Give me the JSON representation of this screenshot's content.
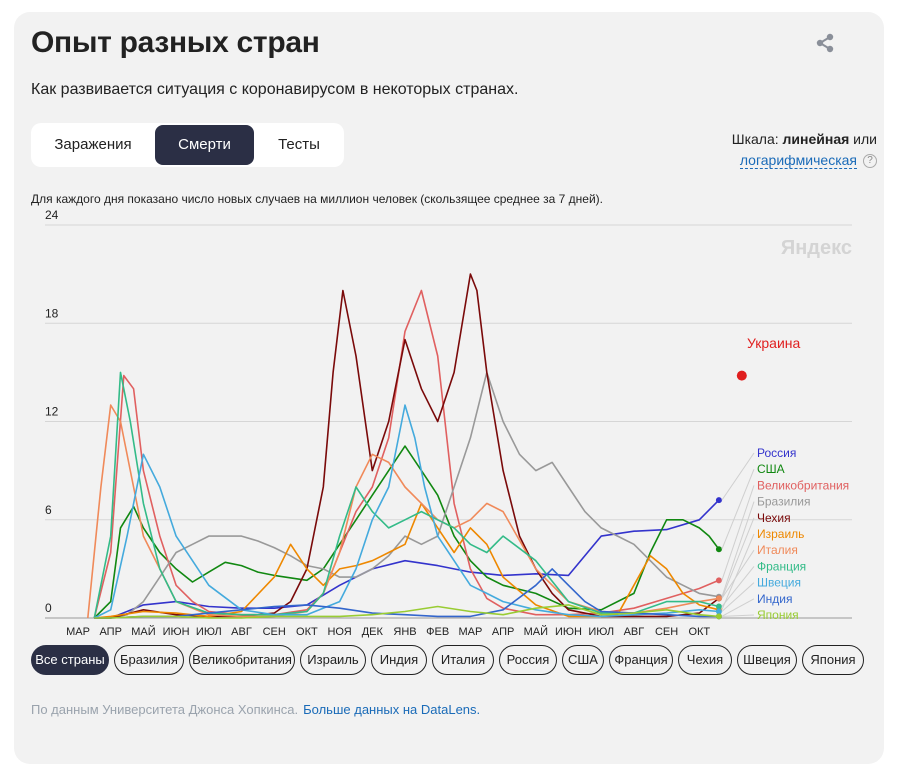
{
  "header": {
    "title": "Опыт разных стран",
    "subtitle": "Как развивается ситуация с коронавирусом в некоторых странах."
  },
  "tabs": [
    {
      "label": "Заражения",
      "active": false
    },
    {
      "label": "Смерти",
      "active": true
    },
    {
      "label": "Тесты",
      "active": false
    }
  ],
  "scale": {
    "prefix": "Шкала: ",
    "current": "линейная",
    "or": " или",
    "alternative": "логарифмическая",
    "help": "?"
  },
  "note": "Для каждого дня показано число новых случаев на миллион человек (скользящее среднее за 7 дней).",
  "watermark": "Яндекс",
  "filters": [
    "Все страны",
    "Бразилия",
    "Великобритания",
    "Израиль",
    "Индия",
    "Италия",
    "Россия",
    "США",
    "Франция",
    "Чехия",
    "Швеция",
    "Япония"
  ],
  "footer": {
    "source": "По данным Университета Джонса Хопкинса.",
    "link": "Больше данных на DataLens."
  },
  "colors": {
    "active_tab": "#2b2f45",
    "link": "#1a6bb8"
  },
  "chart_data": {
    "type": "line",
    "ylim": [
      0,
      24
    ],
    "yticks": [
      0,
      6,
      12,
      18,
      24
    ],
    "x_ticks": [
      "МАР",
      "АПР",
      "МАЙ",
      "ИЮН",
      "ИЮЛ",
      "АВГ",
      "СЕН",
      "ОКТ",
      "НОЯ",
      "ДЕК",
      "ЯНВ",
      "ФЕВ",
      "МАР",
      "АПР",
      "МАЙ",
      "ИЮН",
      "ИЮЛ",
      "АВГ",
      "СЕН",
      "ОКТ"
    ],
    "grid": true,
    "legend": "right",
    "highlight": {
      "name": "Украина",
      "x": 20.3,
      "y": 14.8,
      "color": "#e01f1f"
    },
    "series": [
      {
        "name": "Россия",
        "color": "#3333cc",
        "x": [
          0.5,
          1,
          2,
          3,
          4,
          5,
          6,
          7,
          8,
          9,
          10,
          11,
          12,
          13,
          14,
          15,
          16,
          17,
          18,
          19,
          19.6
        ],
        "y": [
          0,
          0,
          0.8,
          1.0,
          0.7,
          0.6,
          0.6,
          0.8,
          2.0,
          3.0,
          3.5,
          3.2,
          2.8,
          2.6,
          2.7,
          2.6,
          5.0,
          5.3,
          5.4,
          6.0,
          7.2
        ]
      },
      {
        "name": "США",
        "color": "#118811",
        "x": [
          0.5,
          1,
          1.3,
          1.7,
          2,
          2.5,
          3,
          3.5,
          4,
          4.5,
          5,
          5.5,
          6,
          7,
          7.5,
          8,
          8.5,
          9,
          9.5,
          10,
          10.5,
          11,
          11.5,
          12,
          12.5,
          13,
          14,
          15,
          16,
          17,
          17.5,
          18,
          18.5,
          19,
          19.3,
          19.6
        ],
        "y": [
          0,
          1,
          5.5,
          6.8,
          5.5,
          4.0,
          3.0,
          2.2,
          2.8,
          3.4,
          3.2,
          2.8,
          2.6,
          2.3,
          3.0,
          4.5,
          6.0,
          7.5,
          9.0,
          10.5,
          9.0,
          7.5,
          5.0,
          3.5,
          2.5,
          2.0,
          1.5,
          0.6,
          0.5,
          1.5,
          4.0,
          6.0,
          6.0,
          5.5,
          5.0,
          4.2
        ]
      },
      {
        "name": "Великобритания",
        "color": "#e06060",
        "x": [
          0.5,
          1,
          1.4,
          1.7,
          2,
          2.5,
          3,
          3.5,
          4,
          5,
          6,
          7,
          7.5,
          8,
          8.5,
          9,
          9.5,
          10,
          10.5,
          11,
          11.5,
          12,
          12.5,
          13,
          14,
          15,
          16,
          17,
          18,
          19,
          19.6
        ],
        "y": [
          0,
          4,
          14.8,
          14.0,
          9.0,
          5.0,
          2.0,
          1.0,
          0.4,
          0.2,
          0.2,
          0.5,
          1.5,
          4.0,
          6.5,
          8.0,
          11.0,
          17.5,
          20.0,
          16.0,
          7.0,
          3.0,
          1.2,
          0.6,
          0.2,
          0.2,
          0.3,
          0.6,
          1.2,
          1.8,
          2.3
        ]
      },
      {
        "name": "Бразилия",
        "color": "#999999",
        "x": [
          0.5,
          1,
          1.5,
          2,
          2.5,
          3,
          3.5,
          4,
          4.5,
          5,
          5.5,
          6,
          6.5,
          7,
          7.5,
          8,
          8.5,
          9,
          9.5,
          10,
          10.5,
          11,
          11.5,
          12,
          12.5,
          13,
          13.5,
          14,
          14.5,
          15,
          15.5,
          16,
          16.5,
          17,
          17.5,
          18,
          18.5,
          19,
          19.6
        ],
        "y": [
          0,
          0,
          0.2,
          1.0,
          2.5,
          4.0,
          4.5,
          5.0,
          5.0,
          5.0,
          4.7,
          4.3,
          3.8,
          3.2,
          3.0,
          2.5,
          2.5,
          3.0,
          3.8,
          5.0,
          4.5,
          5.0,
          8.0,
          11.0,
          15.0,
          12.0,
          10.0,
          9.0,
          9.5,
          8.0,
          6.5,
          5.5,
          5.0,
          4.5,
          3.5,
          2.5,
          2.0,
          1.5,
          1.3
        ]
      },
      {
        "name": "Чехия",
        "color": "#7a0a0a",
        "x": [
          0.5,
          1,
          2,
          3,
          4,
          5,
          6,
          6.5,
          7,
          7.5,
          7.8,
          8.1,
          8.5,
          9,
          9.5,
          10,
          10.5,
          11,
          11.5,
          12,
          12.2,
          12.5,
          13,
          13.5,
          14,
          14.5,
          15,
          16,
          17,
          18,
          19,
          19.6
        ],
        "y": [
          0,
          0,
          0.5,
          0.2,
          0.1,
          0.1,
          0.3,
          1.0,
          3.0,
          8.0,
          15.0,
          20.0,
          16.0,
          9.0,
          12.0,
          17.0,
          14.0,
          12.0,
          15.0,
          21.0,
          20.0,
          15.0,
          9.0,
          5.0,
          3.0,
          1.5,
          0.5,
          0.1,
          0.1,
          0.1,
          0.3,
          1.2
        ]
      },
      {
        "name": "Израиль",
        "color": "#ee8800",
        "x": [
          0.5,
          1,
          2,
          3,
          4,
          5,
          6,
          6.5,
          7,
          7.5,
          8,
          8.5,
          9,
          9.5,
          10,
          10.5,
          11,
          11.5,
          12,
          12.5,
          13,
          14,
          15,
          16,
          16.5,
          17,
          17.5,
          18,
          18.5,
          19,
          19.6
        ],
        "y": [
          0,
          0.1,
          0.4,
          0.3,
          0.1,
          0.4,
          2.5,
          4.5,
          3.0,
          2.0,
          3.0,
          3.2,
          3.5,
          4.0,
          4.5,
          7.0,
          5.5,
          4.0,
          5.5,
          4.5,
          2.5,
          0.8,
          0.1,
          0.1,
          0.2,
          2.0,
          3.8,
          3.0,
          1.5,
          0.8,
          0.5
        ]
      },
      {
        "name": "Италия",
        "color": "#f08a5a",
        "x": [
          0.3,
          0.7,
          1.0,
          1.3,
          1.6,
          2,
          2.5,
          3,
          4,
          5,
          6,
          7,
          7.5,
          8,
          8.5,
          9,
          9.5,
          10,
          10.5,
          11,
          11.5,
          12,
          12.5,
          13,
          14,
          15,
          16,
          17,
          18,
          19,
          19.6
        ],
        "y": [
          0,
          8.0,
          13.0,
          12.0,
          9.0,
          5.0,
          3.0,
          1.0,
          0.2,
          0.1,
          0.1,
          0.4,
          1.5,
          4.0,
          8.0,
          10.0,
          9.5,
          8.0,
          7.0,
          6.0,
          5.5,
          6.0,
          7.0,
          6.5,
          3.0,
          1.0,
          0.4,
          0.3,
          0.6,
          1.0,
          1.2
        ]
      },
      {
        "name": "Франция",
        "color": "#33bb88",
        "x": [
          0.5,
          1,
          1.3,
          1.6,
          2,
          2.5,
          3,
          4,
          5,
          6,
          7,
          7.5,
          8,
          8.5,
          9,
          9.5,
          10,
          10.5,
          11,
          11.5,
          12,
          12.5,
          13,
          14,
          15,
          16,
          17,
          18,
          19,
          19.6
        ],
        "y": [
          0,
          5.0,
          15.0,
          12.0,
          7.0,
          3.0,
          1.0,
          0.3,
          0.2,
          0.2,
          0.4,
          1.5,
          5.0,
          8.0,
          6.5,
          5.5,
          6.0,
          6.5,
          6.0,
          5.5,
          4.5,
          4.0,
          5.0,
          3.5,
          1.0,
          0.3,
          0.3,
          1.0,
          1.0,
          0.7
        ]
      },
      {
        "name": "Швеция",
        "color": "#44aadd",
        "x": [
          0.5,
          1,
          1.5,
          2,
          2.5,
          3,
          3.5,
          4,
          5,
          6,
          7,
          8,
          8.5,
          9,
          9.5,
          10,
          10.3,
          10.6,
          11,
          11.5,
          12,
          12.5,
          13,
          14,
          15,
          16,
          17,
          18,
          19,
          19.6
        ],
        "y": [
          0,
          0.5,
          5.0,
          10.0,
          8.0,
          5.0,
          3.5,
          2.0,
          0.5,
          0.2,
          0.2,
          1.0,
          3.0,
          6.0,
          8.0,
          13.0,
          11.0,
          8.0,
          5.0,
          3.5,
          2.0,
          1.5,
          1.0,
          0.5,
          0.2,
          0.1,
          0.2,
          0.3,
          0.5,
          0.4
        ]
      },
      {
        "name": "Индия",
        "color": "#3366cc",
        "x": [
          0.5,
          1,
          2,
          3,
          4,
          5,
          6,
          7,
          8,
          9,
          10,
          11,
          12,
          13,
          14,
          14.5,
          15,
          15.5,
          16,
          17,
          18,
          19,
          19.6
        ],
        "y": [
          0,
          0,
          0.1,
          0.1,
          0.3,
          0.5,
          0.7,
          0.8,
          0.6,
          0.3,
          0.2,
          0.1,
          0.1,
          0.5,
          2.0,
          3.0,
          2.0,
          1.0,
          0.4,
          0.3,
          0.2,
          0.1,
          0.1
        ]
      },
      {
        "name": "Япония",
        "color": "#99cc33",
        "x": [
          0.5,
          1,
          2,
          3,
          4,
          5,
          6,
          7,
          8,
          9,
          10,
          11,
          12,
          13,
          14,
          15,
          16,
          17,
          18,
          19,
          19.6
        ],
        "y": [
          0,
          0,
          0.1,
          0.1,
          0,
          0,
          0.1,
          0.1,
          0.1,
          0.2,
          0.4,
          0.7,
          0.4,
          0.2,
          0.6,
          0.8,
          0.2,
          0.3,
          0.5,
          0.2,
          0.1
        ]
      }
    ]
  }
}
